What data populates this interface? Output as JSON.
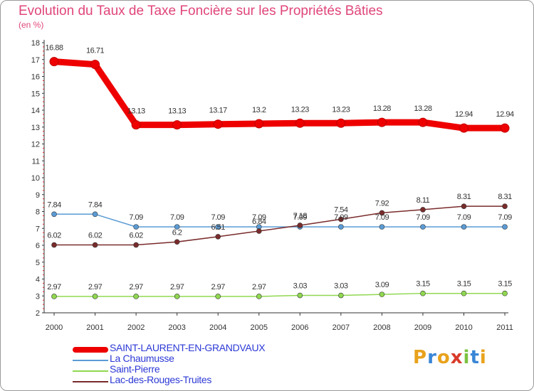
{
  "header": {
    "title": "Evolution du Taux de Taxe Foncière sur les Propriétés Bâties",
    "unit": "(en %)"
  },
  "logo": {
    "text": "Proxiti",
    "colors": [
      "#e8a21c",
      "#3a86d6",
      "#e8a21c",
      "#d93a2a",
      "#7cc241",
      "#3a86d6",
      "#e8a21c"
    ]
  },
  "chart_data": {
    "type": "line",
    "x": [
      "2000",
      "2001",
      "2002",
      "2003",
      "2004",
      "2005",
      "2006",
      "2007",
      "2008",
      "2009",
      "2010",
      "2011"
    ],
    "ylim": [
      2,
      18
    ],
    "yticks": [
      "2",
      "3",
      "4",
      "5",
      "6",
      "7",
      "8",
      "9",
      "10",
      "11",
      "12",
      "13",
      "14",
      "15",
      "16",
      "17",
      "18"
    ],
    "grid": false,
    "legend_position": "bottom-left",
    "series": [
      {
        "name": "SAINT-LAURENT-EN-GRANDVAUX",
        "color": "#ee0000",
        "values": [
          16.88,
          16.71,
          13.13,
          13.13,
          13.17,
          13.2,
          13.23,
          13.23,
          13.28,
          13.28,
          12.94,
          12.94
        ],
        "labels": [
          "16.88",
          "16.71",
          "13.13",
          "13.13",
          "13.17",
          "13.2",
          "13.23",
          "13.23",
          "13.28",
          "13.28",
          "12.94",
          "12.94"
        ]
      },
      {
        "name": "La Chaumusse",
        "color": "#5b9bd5",
        "values": [
          7.84,
          7.84,
          7.09,
          7.09,
          7.09,
          7.09,
          7.09,
          7.09,
          7.09,
          7.09,
          7.09,
          7.09
        ],
        "labels": [
          "7.84",
          "7.84",
          "7.09",
          "7.09",
          "7.09",
          "7.09",
          "7.09",
          "7.09",
          "7.09",
          "7.09",
          "7.09",
          "7.09"
        ]
      },
      {
        "name": "Saint-Pierre",
        "color": "#90d850",
        "values": [
          2.97,
          2.97,
          2.97,
          2.97,
          2.97,
          2.97,
          3.03,
          3.03,
          3.09,
          3.15,
          3.15,
          3.15
        ],
        "labels": [
          "2.97",
          "2.97",
          "2.97",
          "2.97",
          "2.97",
          "2.97",
          "3.03",
          "3.03",
          "3.09",
          "3.15",
          "3.15",
          "3.15"
        ]
      },
      {
        "name": "Lac-des-Rouges-Truites",
        "color": "#7a2b2b",
        "values": [
          6.02,
          6.02,
          6.02,
          6.2,
          6.51,
          6.84,
          7.18,
          7.54,
          7.92,
          8.11,
          8.31,
          8.31
        ],
        "labels": [
          "6.02",
          "6.02",
          "6.02",
          "6.2",
          "6.51",
          "6.84",
          "7.18",
          "7.54",
          "7.92",
          "8.11",
          "8.31",
          "8.31"
        ]
      }
    ]
  }
}
